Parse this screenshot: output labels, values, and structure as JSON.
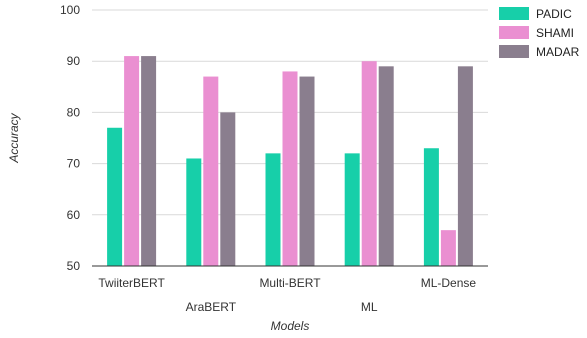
{
  "chart_data": {
    "type": "bar",
    "xlabel": "Models",
    "ylabel": "Accuracy",
    "ylim": [
      50,
      100
    ],
    "yticks": [
      50,
      60,
      70,
      80,
      90,
      100
    ],
    "grid": true,
    "legend_position": "right",
    "categories": [
      "TwiiterBERT",
      "AraBERT",
      "Multi-BERT",
      "ML",
      "ML-Dense"
    ],
    "series": [
      {
        "name": "PADIC",
        "color": "#17cfa9",
        "values": [
          77,
          71,
          72,
          72,
          73
        ]
      },
      {
        "name": "SHAMI",
        "color": "#ea8fd1",
        "values": [
          91,
          87,
          88,
          90,
          57
        ]
      },
      {
        "name": "MADAR",
        "color": "#8a7e8e",
        "values": [
          91,
          80,
          87,
          89,
          89
        ]
      }
    ]
  }
}
